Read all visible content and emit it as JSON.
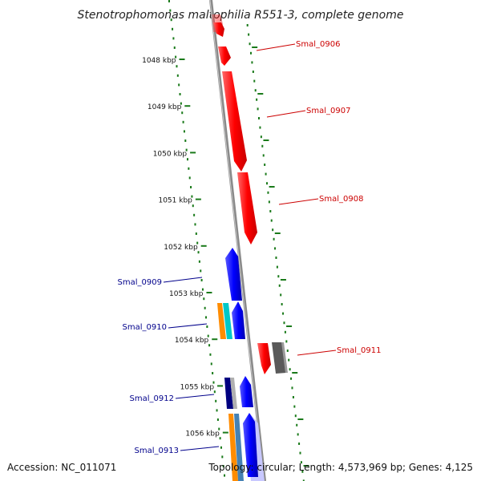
{
  "title": "Stenotrophomonas maltophilia R551-3, complete genome",
  "footer": {
    "accession": "Accession: NC_011071",
    "topology": "Topology: circular; Length: 4,573,969 bp; Genes: 4,125"
  },
  "colors": {
    "forward": "#ff0000",
    "reverse": "#0000ff",
    "backbone": "#888888",
    "ticks": "#1a7a1a",
    "forward_label": "#cc0000",
    "reverse_label": "#00008b"
  },
  "kbp_labels": [
    "1048 kbp",
    "1049 kbp",
    "1050 kbp",
    "1051 kbp",
    "1052 kbp",
    "1053 kbp",
    "1054 kbp",
    "1055 kbp",
    "1056 kbp"
  ],
  "gene_labels": [
    "Smal_0906",
    "Smal_0907",
    "Smal_0908",
    "Smal_0909",
    "Smal_0910",
    "Smal_0911",
    "Smal_0912",
    "Smal_0913"
  ]
}
